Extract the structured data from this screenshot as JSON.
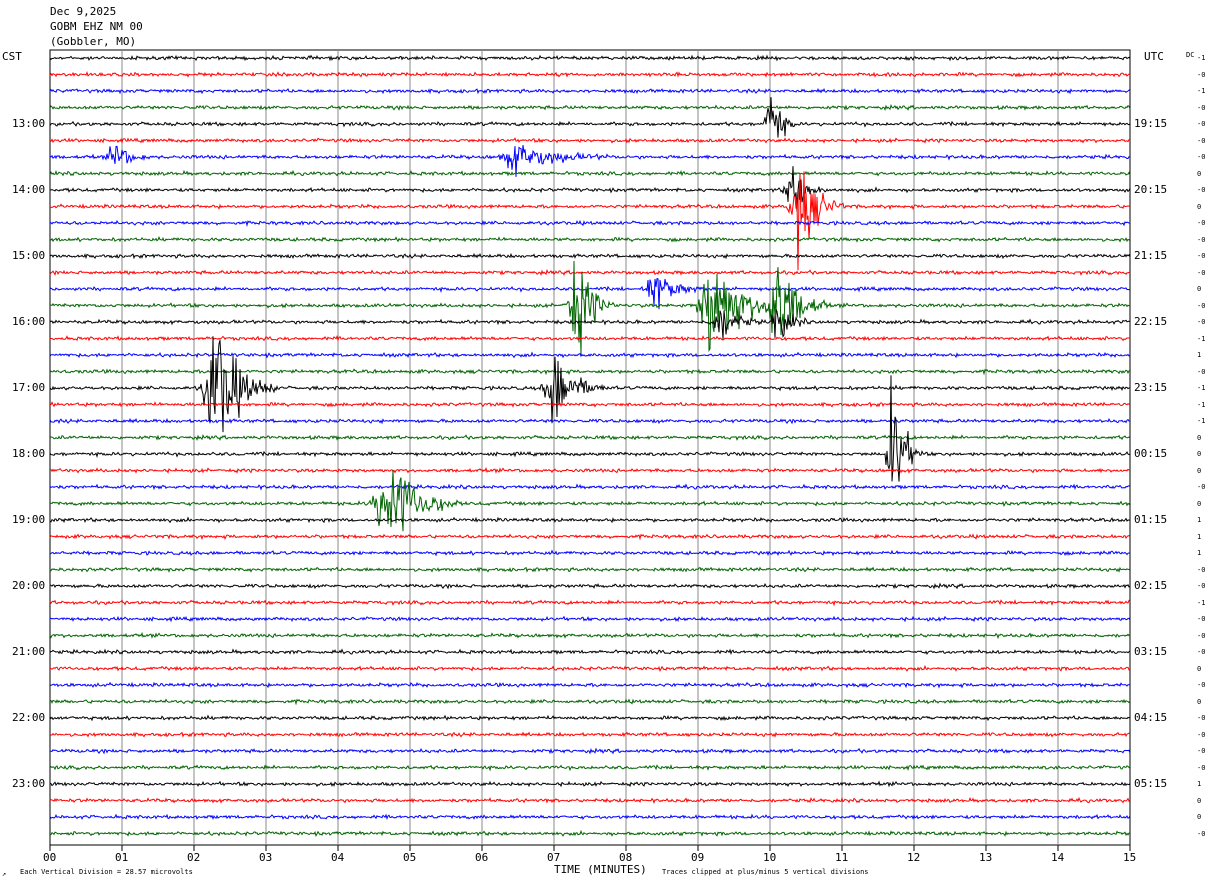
{
  "header": {
    "date": "Dec 9,2025",
    "station": "GOBM EHZ NM 00",
    "location": "(Gobbler, MO)"
  },
  "left_axis_title": "CST",
  "right_axis_title": "UTC",
  "dc_label": "DC",
  "footer": {
    "division_note": "Each Vertical Division =   28.57 microvolts",
    "xaxis_title": "TIME (MINUTES)",
    "clip_note": "Traces clipped at plus/minus 5 vertical divisions"
  },
  "chart_data": {
    "type": "line",
    "title": "Dec 9,2025 GOBM EHZ NM 00 (Gobbler, MO)",
    "xlabel": "TIME (MINUTES)",
    "xlim": [
      0,
      15
    ],
    "x_tick_labels": [
      "00",
      "01",
      "02",
      "03",
      "04",
      "05",
      "06",
      "07",
      "08",
      "09",
      "10",
      "11",
      "12",
      "13",
      "14",
      "15"
    ],
    "trace_count": 48,
    "trace_colors": [
      "#000000",
      "#ff0000",
      "#0000ff",
      "#006400"
    ],
    "left_hour_labels": [
      "13:00",
      "14:00",
      "15:00",
      "16:00",
      "17:00",
      "18:00",
      "19:00",
      "20:00",
      "21:00",
      "22:00",
      "23:00"
    ],
    "right_hour_labels": [
      "19:15",
      "20:15",
      "21:15",
      "22:15",
      "23:15",
      "00:15",
      "01:15",
      "02:15",
      "03:15",
      "04:15",
      "05:15"
    ],
    "dc_offsets": [
      "-1",
      "-0",
      "-1",
      "-0",
      "-0",
      "-0",
      "-0",
      "0",
      "-0",
      "0",
      "-0",
      "-0",
      "-0",
      "-0",
      "0",
      "-0",
      "-0",
      "-1",
      "1",
      "-0",
      "-1",
      "-1",
      "-1",
      "0",
      "0",
      "0",
      "-0",
      "0",
      "1",
      "1",
      "1",
      "-0",
      "-0",
      "-1",
      "-0",
      "-0",
      "-0",
      "0",
      "-0",
      "0",
      "-0",
      "-0",
      "-0",
      "-0",
      "1",
      "0",
      "0",
      "-0"
    ],
    "events": [
      {
        "trace": 4,
        "minute": 10.0,
        "amp": 2.6,
        "dur": 0.25
      },
      {
        "trace": 6,
        "minute": 0.9,
        "amp": 1.0,
        "dur": 0.35
      },
      {
        "trace": 6,
        "minute": 6.5,
        "amp": 0.9,
        "dur": 0.9
      },
      {
        "trace": 8,
        "minute": 10.3,
        "amp": 2.0,
        "dur": 0.35
      },
      {
        "trace": 9,
        "minute": 10.4,
        "amp": 3.3,
        "dur": 0.45
      },
      {
        "trace": 14,
        "minute": 8.4,
        "amp": 1.2,
        "dur": 0.5
      },
      {
        "trace": 15,
        "minute": 7.3,
        "amp": 3.5,
        "dur": 0.4
      },
      {
        "trace": 15,
        "minute": 9.2,
        "amp": 3.6,
        "dur": 0.7
      },
      {
        "trace": 15,
        "minute": 10.1,
        "amp": 3.5,
        "dur": 0.5
      },
      {
        "trace": 16,
        "minute": 9.3,
        "amp": 1.3,
        "dur": 0.4
      },
      {
        "trace": 16,
        "minute": 10.1,
        "amp": 1.5,
        "dur": 0.3
      },
      {
        "trace": 20,
        "minute": 2.3,
        "amp": 4.2,
        "dur": 0.6
      },
      {
        "trace": 20,
        "minute": 7.0,
        "amp": 2.6,
        "dur": 0.5
      },
      {
        "trace": 24,
        "minute": 11.7,
        "amp": 4.5,
        "dur": 0.3
      },
      {
        "trace": 27,
        "minute": 4.7,
        "amp": 3.3,
        "dur": 0.7
      }
    ]
  }
}
